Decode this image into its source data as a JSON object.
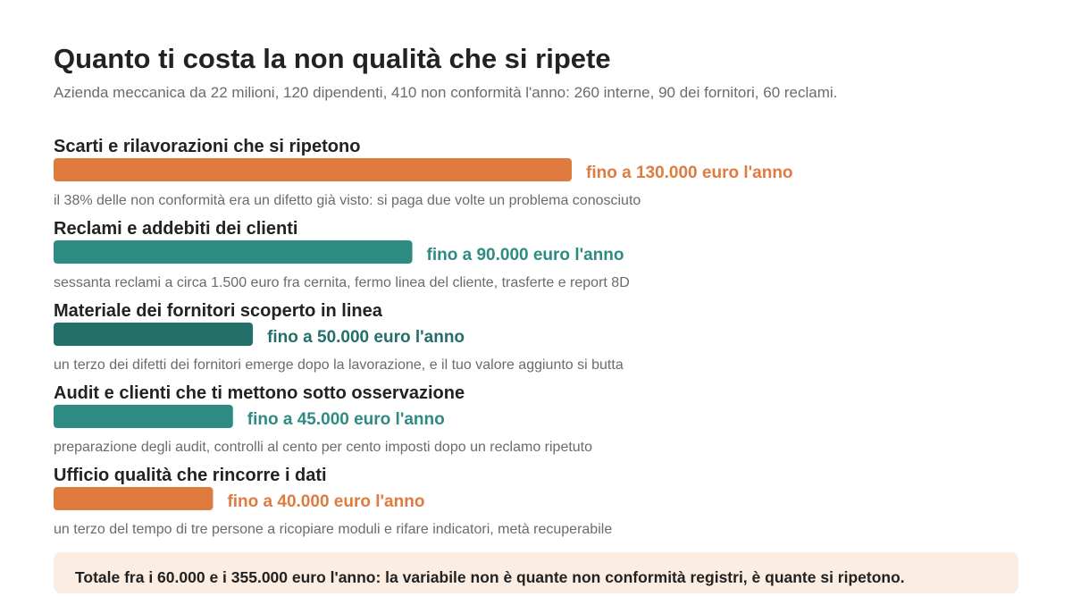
{
  "chart_data": {
    "type": "bar",
    "title": "Quanto ti costa la non qualità che si ripete",
    "subtitle": "Azienda meccanica da 22 milioni, 120 dipendenti, 410 non conformità l'anno: 260 interne, 90 dei fornitori, 60 reclami.",
    "categories": [
      "Scarti e rilavorazioni che si ripetono",
      "Reclami e addebiti dei clienti",
      "Materiale dei fornitori scoperto in linea",
      "Audit e clienti che ti mettono sotto osservazione",
      "Ufficio qualità che rincorre i dati"
    ],
    "values": [
      130000,
      90000,
      50000,
      45000,
      40000
    ],
    "value_labels": [
      "fino a 130.000 euro l'anno",
      "fino a 90.000 euro l'anno",
      "fino a 50.000 euro l'anno",
      "fino a 45.000 euro l'anno",
      "fino a 40.000 euro l'anno"
    ],
    "colors": [
      "#e07b3f",
      "#2e8b84",
      "#236f69",
      "#2e8b84",
      "#e07b3f"
    ],
    "descriptions": [
      "il 38% delle non conformità era un difetto già visto: si paga due volte un problema conosciuto",
      "sessanta reclami a circa 1.500 euro fra cernita, fermo linea del cliente, trasferte e report 8D",
      "un terzo dei difetti dei fornitori emerge dopo la lavorazione, e il tuo valore aggiunto si butta",
      "preparazione degli audit, controlli al cento per cento imposti dopo un reclamo ripetuto",
      "un terzo del tempo di tre persone a ricopiare moduli e rifare indicatori, metà recuperabile"
    ],
    "total_note": "Totale fra i 60.000 e i 355.000 euro l'anno: la variabile non è quante non conformità registri, è quante si ripetono."
  }
}
